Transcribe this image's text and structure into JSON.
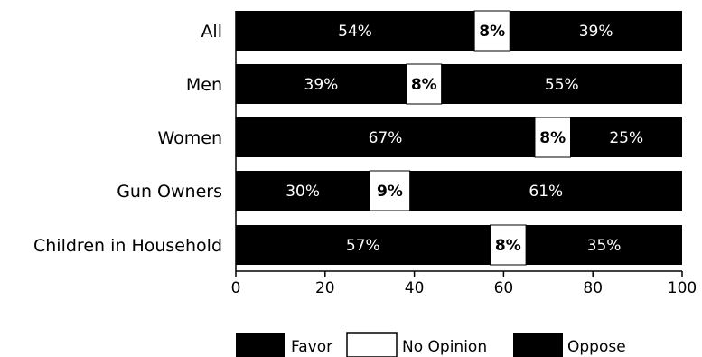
{
  "chart_data": {
    "type": "bar",
    "orientation": "horizontal",
    "stacked": true,
    "categories": [
      "All",
      "Men",
      "Women",
      "Gun Owners",
      "Children in Household"
    ],
    "series": [
      {
        "name": "Favor",
        "values": [
          54,
          39,
          67,
          30,
          57
        ],
        "labels": [
          "54%",
          "39%",
          "67%",
          "30%",
          "57%"
        ],
        "color": "#000000"
      },
      {
        "name": "No Opinion",
        "values": [
          8,
          8,
          8,
          9,
          8
        ],
        "labels": [
          "8%",
          "8%",
          "8%",
          "9%",
          "8%"
        ],
        "color": "#ffffff"
      },
      {
        "name": "Oppose",
        "values": [
          39,
          55,
          25,
          61,
          35
        ],
        "labels": [
          "39%",
          "55%",
          "25%",
          "61%",
          "35%"
        ],
        "color": "#000000"
      }
    ],
    "xlim": [
      0,
      100
    ],
    "xticks": [
      "0",
      "20",
      "40",
      "60",
      "80",
      "100"
    ],
    "xtick_values": [
      0,
      20,
      40,
      60,
      80,
      100
    ],
    "grid": false,
    "legend_position": "bottom-center"
  }
}
